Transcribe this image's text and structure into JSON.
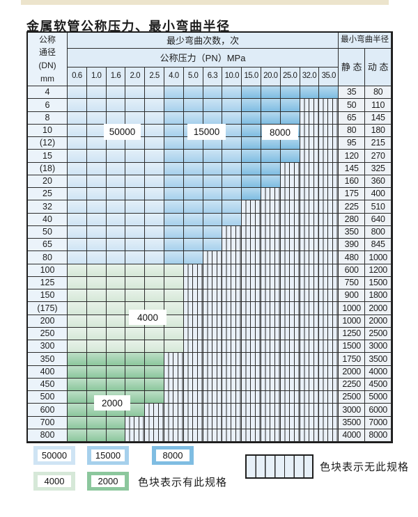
{
  "title": "金属软管公称压力、最小弯曲半径",
  "table": {
    "corner_lines": [
      "公称",
      "通径",
      "(DN)",
      "mm"
    ],
    "cycles_header": "最少弯曲次数，次",
    "radius_header": "最小弯曲半径",
    "pressure_header": "公称压力（PN）MPa",
    "static_label": "静 态",
    "dynamic_label": "动 态",
    "pressure_columns": [
      "0.6",
      "1.0",
      "1.6",
      "2.0",
      "2.5",
      "4.0",
      "5.0",
      "6.3",
      "10.0",
      "15.0",
      "20.0",
      "25.0",
      "32.0",
      "35.0"
    ],
    "rows": [
      {
        "dn": "4",
        "group": "blue",
        "colored": 14,
        "static": "35",
        "dynamic": "80"
      },
      {
        "dn": "6",
        "group": "blue",
        "colored": 12,
        "static": "50",
        "dynamic": "110"
      },
      {
        "dn": "8",
        "group": "blue",
        "colored": 12,
        "static": "65",
        "dynamic": "145"
      },
      {
        "dn": "10",
        "group": "blue",
        "colored": 12,
        "static": "80",
        "dynamic": "180"
      },
      {
        "dn": "(12)",
        "group": "blue",
        "colored": 12,
        "static": "95",
        "dynamic": "215"
      },
      {
        "dn": "15",
        "group": "blue",
        "colored": 12,
        "static": "120",
        "dynamic": "270"
      },
      {
        "dn": "(18)",
        "group": "blue",
        "colored": 11,
        "static": "145",
        "dynamic": "325"
      },
      {
        "dn": "20",
        "group": "blue",
        "colored": 11,
        "static": "160",
        "dynamic": "360"
      },
      {
        "dn": "25",
        "group": "blue",
        "colored": 10,
        "static": "175",
        "dynamic": "400"
      },
      {
        "dn": "32",
        "group": "blue",
        "colored": 9,
        "static": "225",
        "dynamic": "510"
      },
      {
        "dn": "40",
        "group": "blue",
        "colored": 9,
        "static": "280",
        "dynamic": "640"
      },
      {
        "dn": "50",
        "group": "blue",
        "colored": 8,
        "static": "350",
        "dynamic": "800"
      },
      {
        "dn": "65",
        "group": "blue",
        "colored": 8,
        "static": "390",
        "dynamic": "845"
      },
      {
        "dn": "80",
        "group": "blue",
        "colored": 7,
        "static": "480",
        "dynamic": "1000"
      },
      {
        "dn": "100",
        "group": "4000",
        "colored": 6,
        "static": "600",
        "dynamic": "1200"
      },
      {
        "dn": "125",
        "group": "4000",
        "colored": 6,
        "static": "750",
        "dynamic": "1500"
      },
      {
        "dn": "150",
        "group": "4000",
        "colored": 6,
        "static": "900",
        "dynamic": "1800"
      },
      {
        "dn": "(175)",
        "group": "4000",
        "colored": 6,
        "static": "1000",
        "dynamic": "2000"
      },
      {
        "dn": "200",
        "group": "4000",
        "colored": 6,
        "static": "1000",
        "dynamic": "2000"
      },
      {
        "dn": "250",
        "group": "4000",
        "colored": 6,
        "static": "1250",
        "dynamic": "2500"
      },
      {
        "dn": "300",
        "group": "4000",
        "colored": 6,
        "static": "1500",
        "dynamic": "3000"
      },
      {
        "dn": "350",
        "group": "2000",
        "colored": 5,
        "static": "1750",
        "dynamic": "3500"
      },
      {
        "dn": "400",
        "group": "2000",
        "colored": 5,
        "static": "2000",
        "dynamic": "4000"
      },
      {
        "dn": "450",
        "group": "2000",
        "colored": 5,
        "static": "2250",
        "dynamic": "4500"
      },
      {
        "dn": "500",
        "group": "2000",
        "colored": 5,
        "static": "2500",
        "dynamic": "5000"
      },
      {
        "dn": "600",
        "group": "2000",
        "colored": 4,
        "static": "3000",
        "dynamic": "6000"
      },
      {
        "dn": "700",
        "group": "2000",
        "colored": 3,
        "static": "3500",
        "dynamic": "7000"
      },
      {
        "dn": "800",
        "group": "2000",
        "colored": 3,
        "static": "4000",
        "dynamic": "8000"
      }
    ],
    "blue_column_zones": [
      {
        "first_col": 0,
        "last_col": 4,
        "cycles": "50000"
      },
      {
        "first_col": 5,
        "last_col": 8,
        "cycles": "15000"
      },
      {
        "first_col": 9,
        "last_col": 13,
        "cycles": "8000"
      }
    ],
    "overlay_labels": [
      "50000",
      "15000",
      "8000",
      "4000",
      "2000"
    ]
  },
  "legend": {
    "swatches": [
      "50000",
      "15000",
      "8000",
      "4000",
      "2000"
    ],
    "has_spec_note": "色块表示有此规格",
    "no_spec_note": "色块表示无此规格"
  },
  "colors": {
    "c50000": "#cfe4f4",
    "c15000": "#a6d0ec",
    "c8000": "#7fbde2",
    "c4000": "#d6e8d8",
    "c2000": "#8cc79d",
    "no_spec_bg": "#e9f0f8",
    "grid_line": "#2b2b2b",
    "header_bg": "#dfecf7",
    "scan_strip": "#ece4cc"
  }
}
